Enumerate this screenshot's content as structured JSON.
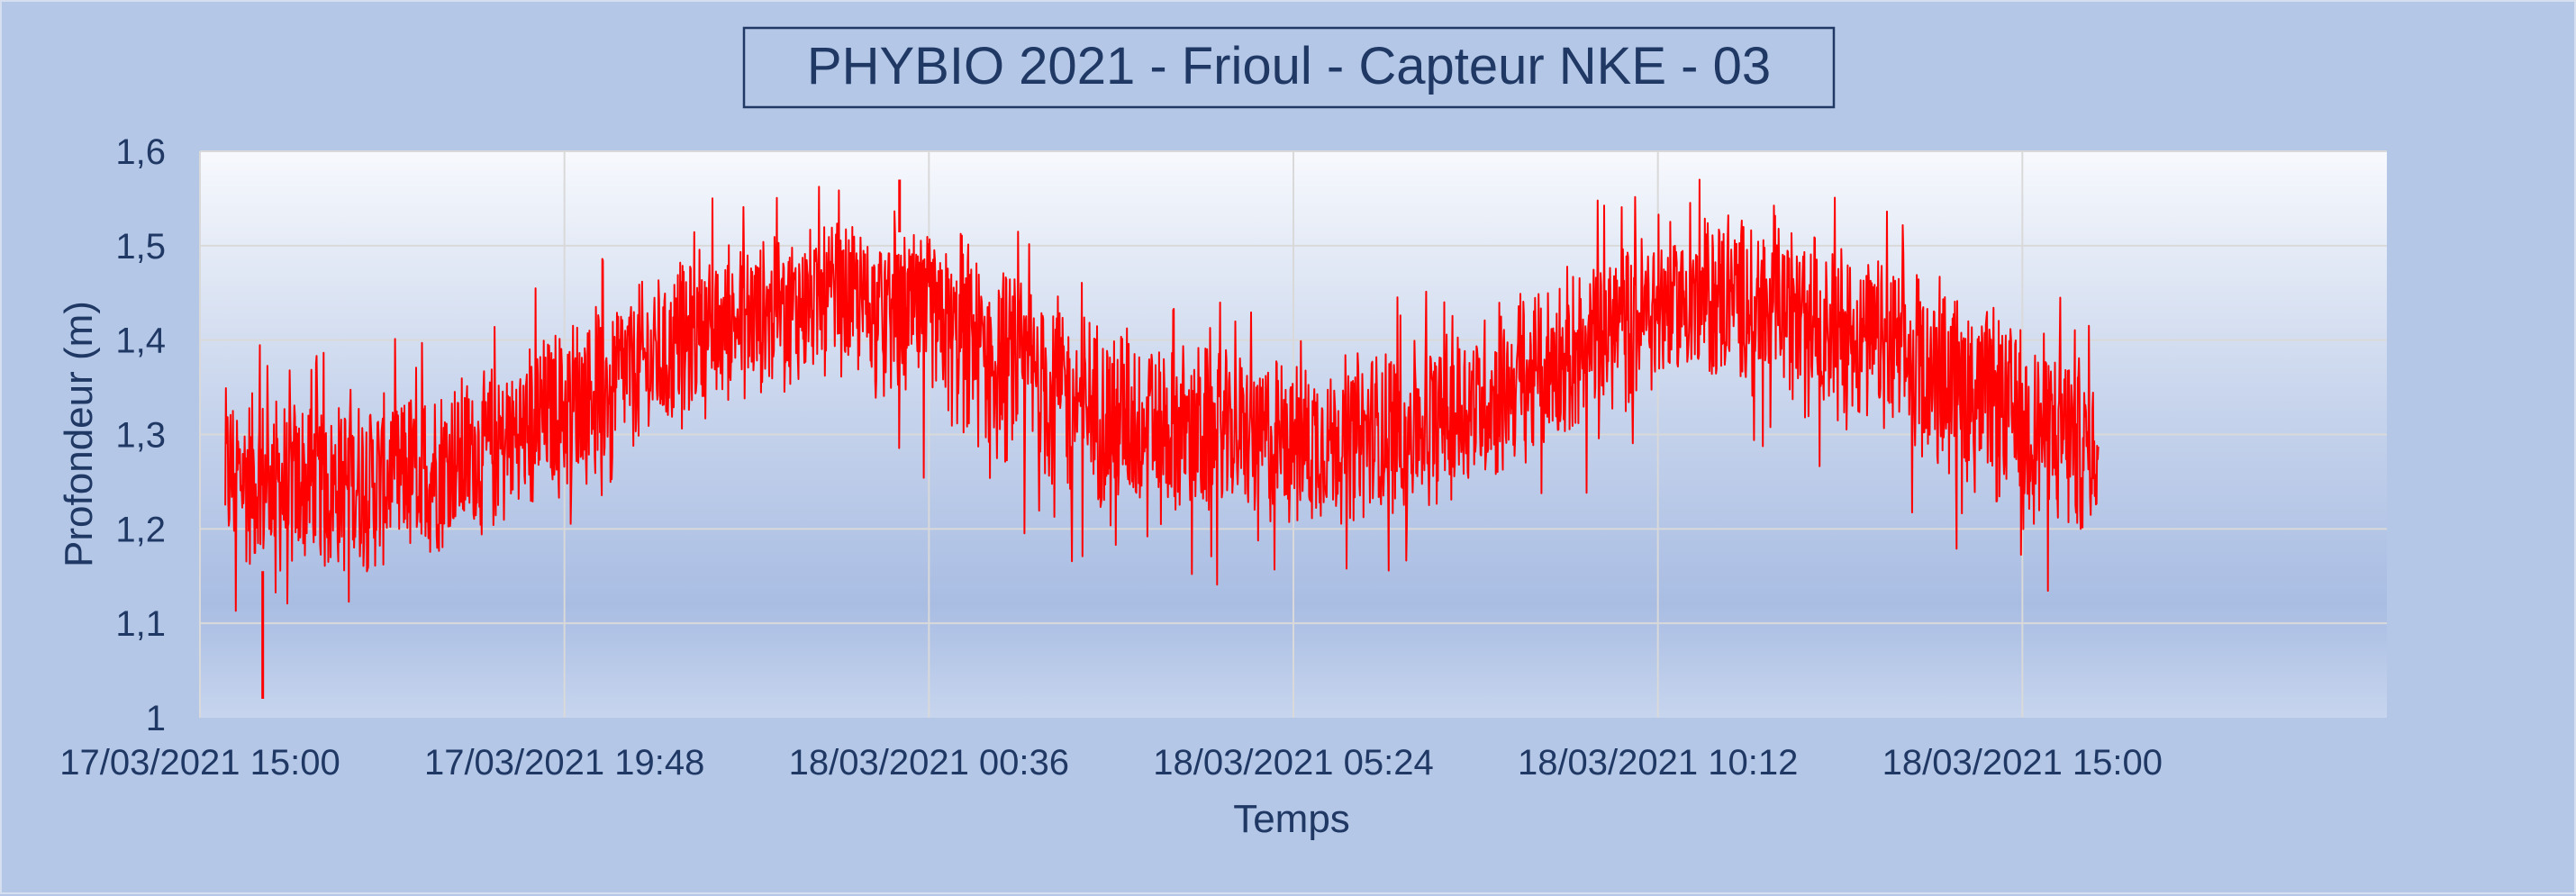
{
  "chart_data": {
    "type": "line",
    "title": "PHYBIO 2021 - Frioul - Capteur NKE - 03",
    "xlabel": "Temps",
    "ylabel": "Profondeur (m)",
    "ylim": [
      1,
      1.6
    ],
    "yticks": [
      "1",
      "1,1",
      "1,2",
      "1,3",
      "1,4",
      "1,5",
      "1,6"
    ],
    "xlim": [
      "17/03/2021 15:00",
      "18/03/2021 19:48"
    ],
    "xticks": [
      "17/03/2021 15:00",
      "17/03/2021 19:48",
      "18/03/2021 00:36",
      "18/03/2021 05:24",
      "18/03/2021 10:12",
      "18/03/2021 15:00"
    ],
    "grid": true,
    "legend": "none",
    "series": [
      {
        "color": "#ff0000",
        "x": [
          "17/03/2021 15:20",
          "17/03/2021 16:00",
          "17/03/2021 17:00",
          "17/03/2021 18:00",
          "17/03/2021 19:00",
          "17/03/2021 20:00",
          "17/03/2021 21:00",
          "17/03/2021 22:00",
          "17/03/2021 23:00",
          "17/03/2021 23:40",
          "18/03/2021 00:36",
          "18/03/2021 01:30",
          "18/03/2021 02:30",
          "18/03/2021 03:30",
          "18/03/2021 04:30",
          "18/03/2021 05:24",
          "18/03/2021 06:30",
          "18/03/2021 07:30",
          "18/03/2021 08:30",
          "18/03/2021 09:30",
          "18/03/2021 10:30",
          "18/03/2021 11:30",
          "18/03/2021 12:30",
          "18/03/2021 13:30",
          "18/03/2021 14:30",
          "18/03/2021 15:30",
          "18/03/2021 16:00"
        ],
        "mean": [
          1.26,
          1.25,
          1.25,
          1.26,
          1.29,
          1.34,
          1.38,
          1.42,
          1.44,
          1.44,
          1.42,
          1.38,
          1.34,
          1.31,
          1.3,
          1.29,
          1.3,
          1.32,
          1.36,
          1.41,
          1.44,
          1.44,
          1.42,
          1.38,
          1.34,
          1.3,
          1.28
        ],
        "band_low": [
          1.17,
          1.15,
          1.15,
          1.17,
          1.2,
          1.24,
          1.29,
          1.33,
          1.36,
          1.36,
          1.32,
          1.27,
          1.23,
          1.21,
          1.21,
          1.2,
          1.21,
          1.23,
          1.27,
          1.32,
          1.36,
          1.36,
          1.33,
          1.28,
          1.23,
          1.19,
          1.2
        ],
        "band_high": [
          1.35,
          1.34,
          1.34,
          1.35,
          1.38,
          1.43,
          1.47,
          1.5,
          1.52,
          1.52,
          1.51,
          1.48,
          1.44,
          1.41,
          1.39,
          1.38,
          1.39,
          1.41,
          1.45,
          1.5,
          1.53,
          1.53,
          1.51,
          1.47,
          1.44,
          1.4,
          1.37
        ],
        "min": 1.02,
        "max": 1.57
      }
    ]
  }
}
